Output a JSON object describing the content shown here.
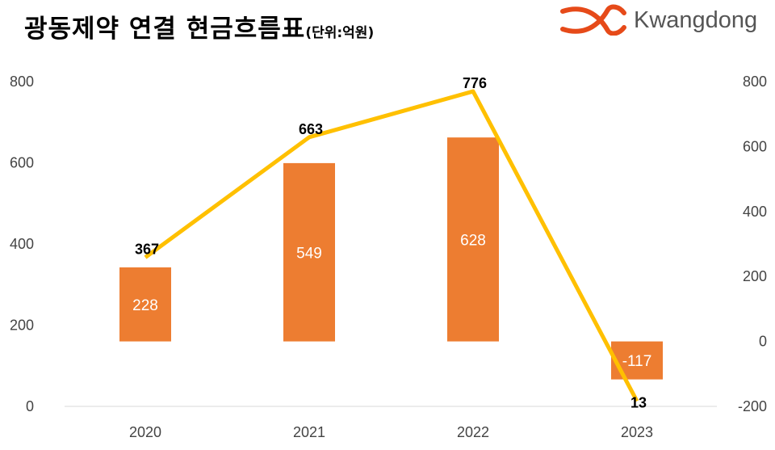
{
  "title": "광동제약 연결 현금흐름표",
  "unit": "(단위:억원)",
  "logo": {
    "name": "Kwangdong-logo-icon",
    "text": "Kwangdong",
    "color": "#E64A19"
  },
  "chart_data": {
    "type": "bar",
    "categories": [
      "2020",
      "2021",
      "2022",
      "2023"
    ],
    "series": [
      {
        "kind": "bar",
        "axis": "right",
        "color": "#ED7D31",
        "values": [
          228,
          549,
          628,
          -117
        ]
      },
      {
        "kind": "line",
        "axis": "left",
        "color": "#FFC000",
        "values": [
          367,
          663,
          776,
          13
        ]
      }
    ],
    "y_left": {
      "min": 0,
      "max": 800,
      "ticks": [
        "0",
        "200",
        "400",
        "600",
        "800"
      ]
    },
    "y_right": {
      "min": -200,
      "max": 800,
      "ticks": [
        "-200",
        "0",
        "200",
        "400",
        "600",
        "800"
      ]
    },
    "grid": false,
    "legend": "none"
  }
}
